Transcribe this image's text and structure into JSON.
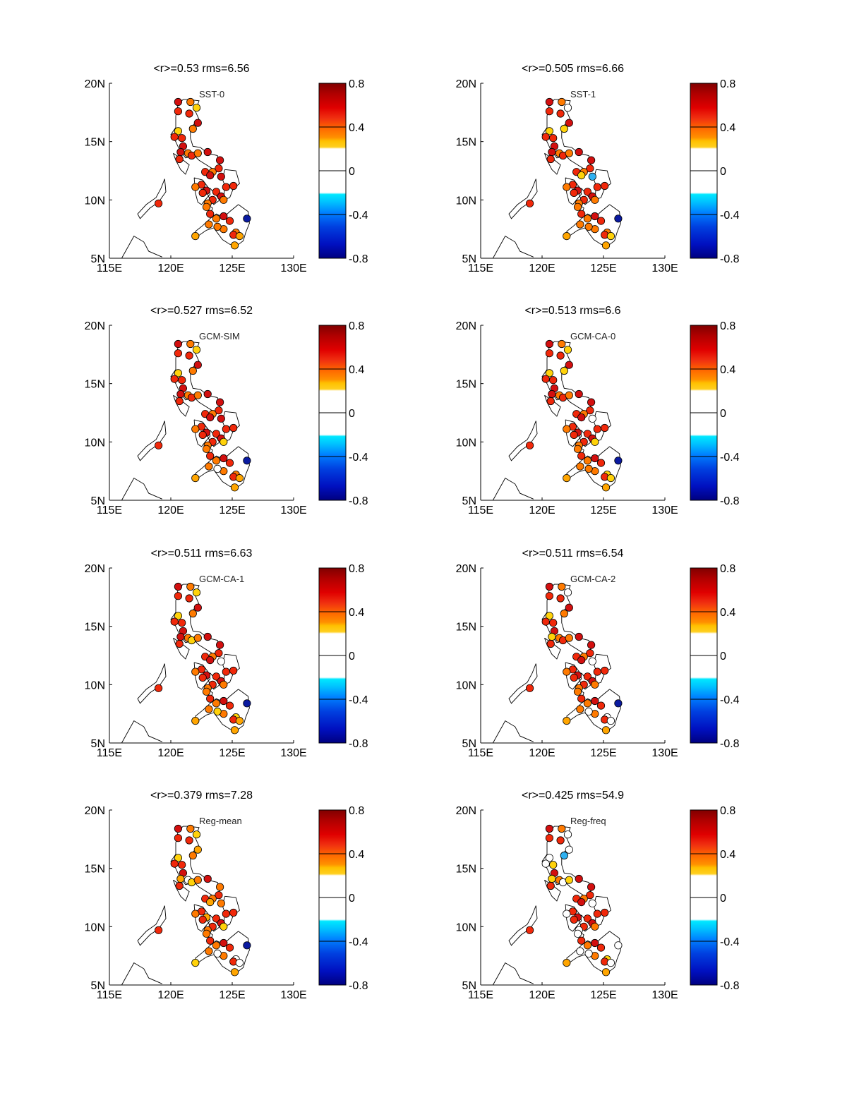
{
  "chart_data": {
    "type": "scatter",
    "x_ticks": [
      "115E",
      "120E",
      "125E",
      "130E"
    ],
    "y_ticks": [
      "5N",
      "10N",
      "15N",
      "20N"
    ],
    "xlim": [
      115,
      130
    ],
    "ylim": [
      5,
      20
    ],
    "colorbar": {
      "range": [
        -0.8,
        0.8
      ],
      "ticks": [
        "0.8",
        "0.4",
        "0",
        "-0.4",
        "-0.8"
      ],
      "tick_values": [
        0.8,
        0.4,
        0,
        -0.4,
        -0.8
      ]
    },
    "panels": [
      {
        "title": "<r>=0.53 rms=6.56",
        "label": "SST-0",
        "values": [
          0.65,
          0.45,
          0.3,
          0.6,
          0.55,
          0.7,
          0.45,
          0.3,
          0.55,
          0.6,
          0.65,
          0.65,
          0.5,
          0.55,
          0.5,
          0.7,
          0.55,
          0.65,
          0.6,
          0.45,
          0.55,
          0.7,
          0.65,
          0.6,
          0.55,
          0.55,
          0.45,
          0.7,
          0.6,
          0.65,
          0.55,
          0.45,
          0.6,
          0.5,
          0.5,
          0.6,
          0.65,
          0.5,
          0.45,
          0.55,
          0.5,
          0.45,
          0.45,
          0.55,
          0.4,
          0.35,
          0.4,
          0.55,
          -0.75
        ]
      },
      {
        "title": "<r>=0.505 rms=6.66",
        "label": "SST-1",
        "values": [
          0.65,
          0.45,
          0.0,
          0.6,
          0.55,
          0.7,
          0.3,
          0.3,
          0.55,
          0.6,
          0.65,
          0.65,
          0.5,
          0.55,
          0.5,
          0.7,
          0.55,
          0.65,
          0.6,
          0.45,
          0.55,
          0.25,
          -0.4,
          0.6,
          0.55,
          0.55,
          0.45,
          0.7,
          0.6,
          0.65,
          0.55,
          0.45,
          0.6,
          0.5,
          0.5,
          0.6,
          0.65,
          0.5,
          0.45,
          0.55,
          0.5,
          0.45,
          0.45,
          0.55,
          0.3,
          0.35,
          0.4,
          0.55,
          -0.75
        ]
      },
      {
        "title": "<r>=0.527 rms=6.52",
        "label": "GCM-SIM",
        "values": [
          0.65,
          0.45,
          0.3,
          0.6,
          0.55,
          0.7,
          0.45,
          0.3,
          0.55,
          0.6,
          0.65,
          0.65,
          0.5,
          0.55,
          0.5,
          0.7,
          0.55,
          0.65,
          0.6,
          0.45,
          0.55,
          0.7,
          0.65,
          0.6,
          0.55,
          0.55,
          0.45,
          0.7,
          0.6,
          0.65,
          0.55,
          0.3,
          0.6,
          0.5,
          0.5,
          0.6,
          0.65,
          0.5,
          0.45,
          0.55,
          0.5,
          0.0,
          0.45,
          0.55,
          0.4,
          0.35,
          0.4,
          0.55,
          -0.75
        ]
      },
      {
        "title": "<r>=0.513 rms=6.6",
        "label": "GCM-CA-0",
        "values": [
          0.65,
          0.45,
          0.3,
          0.6,
          0.55,
          0.7,
          0.3,
          0.3,
          0.55,
          0.6,
          0.65,
          0.65,
          0.5,
          0.55,
          0.5,
          0.7,
          0.55,
          0.65,
          0.6,
          0.45,
          0.55,
          0.7,
          0.0,
          0.6,
          0.55,
          0.55,
          0.45,
          0.7,
          0.6,
          0.65,
          0.55,
          0.3,
          0.6,
          0.5,
          0.5,
          0.6,
          0.65,
          0.5,
          0.45,
          0.55,
          0.5,
          0.45,
          0.3,
          0.55,
          0.3,
          0.35,
          0.4,
          0.55,
          -0.75
        ]
      },
      {
        "title": "<r>=0.511 rms=6.63",
        "label": "GCM-CA-1",
        "values": [
          0.65,
          0.45,
          0.3,
          0.6,
          0.55,
          0.7,
          0.45,
          0.3,
          0.55,
          0.6,
          0.65,
          0.65,
          0.5,
          0.3,
          0.5,
          0.7,
          0.55,
          0.65,
          0.6,
          0.45,
          0.55,
          0.7,
          0.0,
          0.6,
          0.55,
          0.55,
          0.45,
          0.7,
          0.6,
          0.65,
          0.55,
          0.45,
          0.6,
          0.5,
          0.5,
          0.6,
          0.65,
          0.5,
          0.45,
          0.55,
          0.5,
          0.3,
          0.3,
          0.55,
          0.4,
          0.35,
          0.4,
          0.55,
          -0.75
        ]
      },
      {
        "title": "<r>=0.511 rms=6.54",
        "label": "GCM-CA-2",
        "values": [
          0.65,
          0.45,
          0.0,
          0.6,
          0.55,
          0.7,
          0.45,
          0.3,
          0.55,
          0.6,
          0.65,
          0.3,
          0.5,
          0.55,
          0.5,
          0.7,
          0.55,
          0.65,
          0.6,
          0.45,
          0.55,
          0.7,
          0.0,
          0.6,
          0.55,
          0.55,
          0.45,
          0.7,
          0.6,
          0.65,
          0.55,
          0.45,
          0.6,
          0.5,
          0.5,
          0.6,
          0.65,
          0.5,
          0.45,
          0.55,
          0.5,
          0.0,
          0.0,
          0.55,
          0.0,
          0.35,
          0.4,
          0.55,
          -0.75
        ]
      },
      {
        "title": "<r>=0.379 rms=7.28",
        "label": "Reg-mean",
        "values": [
          0.65,
          0.45,
          0.3,
          0.6,
          0.55,
          0.4,
          0.45,
          0.3,
          0.55,
          0.6,
          0.65,
          0.4,
          0.0,
          0.3,
          0.5,
          0.7,
          0.55,
          0.45,
          0.6,
          0.45,
          0.55,
          0.4,
          0.45,
          0.6,
          0.55,
          0.55,
          0.45,
          0.4,
          0.6,
          0.65,
          0.55,
          0.3,
          0.6,
          0.5,
          0.5,
          0.6,
          0.65,
          0.5,
          0.45,
          0.55,
          0.5,
          0.0,
          0.0,
          0.55,
          0.0,
          0.35,
          0.3,
          0.55,
          -0.75
        ]
      },
      {
        "title": "<r>=0.425 rms=54.9",
        "label": "Reg-freq",
        "values": [
          0.65,
          0.45,
          0.0,
          0.6,
          0.55,
          0.0,
          -0.4,
          0.0,
          0.0,
          0.3,
          0.65,
          0.3,
          0.5,
          0.0,
          0.3,
          0.7,
          0.55,
          0.65,
          0.6,
          0.45,
          0.55,
          0.7,
          0.0,
          0.6,
          0.55,
          0.55,
          0.0,
          0.7,
          0.6,
          0.65,
          0.55,
          0.45,
          0.6,
          0.0,
          0.0,
          0.6,
          0.65,
          0.5,
          0.0,
          0.55,
          0.5,
          0.0,
          0.3,
          0.55,
          0.0,
          0.35,
          0.4,
          0.55,
          0.0
        ]
      }
    ]
  }
}
